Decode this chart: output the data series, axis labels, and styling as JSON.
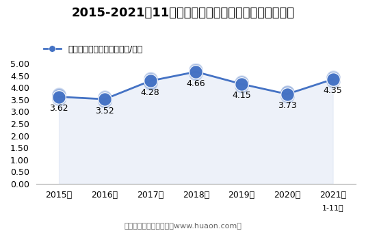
{
  "title": "2015-2021年11月大连商品交易所聚丙烯期货成交均价",
  "legend_label": "聚丙烯期货成交均价（万元/手）",
  "xlabel_bottom": "1-11月",
  "footer": "制图：华经产业研究院（www.huaon.com）",
  "x_labels": [
    "2015年",
    "2016年",
    "2017年",
    "2018年",
    "2019年",
    "2020年",
    "2021年"
  ],
  "values": [
    3.62,
    3.52,
    4.28,
    4.66,
    4.15,
    3.73,
    4.35
  ],
  "ylim": [
    0,
    5.0
  ],
  "yticks": [
    0.0,
    0.5,
    1.0,
    1.5,
    2.0,
    2.5,
    3.0,
    3.5,
    4.0,
    4.5,
    5.0
  ],
  "line_color": "#4472c4",
  "marker_color": "#4472c4",
  "fill_color": "#cdd9ee",
  "background_color": "#ffffff",
  "title_fontsize": 13,
  "label_fontsize": 9,
  "tick_fontsize": 9,
  "annotation_fontsize": 9,
  "footer_fontsize": 8,
  "footer_color": "#666666"
}
